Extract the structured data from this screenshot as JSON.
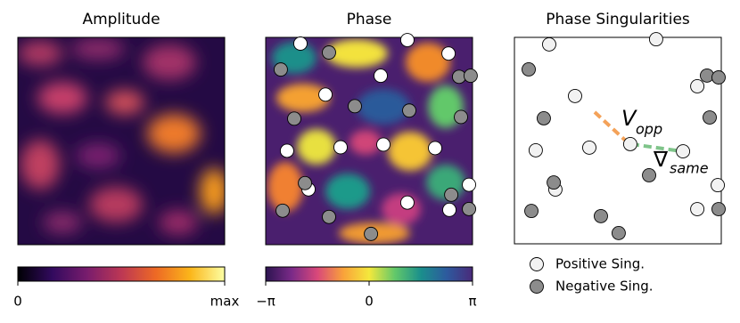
{
  "chart_data": [
    {
      "type": "heatmap",
      "title": "Amplitude",
      "colorbar": {
        "colors": [
          "#000004",
          "#320a5e",
          "#781c6d",
          "#bc3754",
          "#ed6925",
          "#fbb61a",
          "#fcffa4"
        ],
        "xlim": [
          0,
          1
        ],
        "xticks": [
          0,
          {
            "value": 1,
            "label": "max"
          }
        ]
      }
    },
    {
      "type": "heatmap",
      "title": "Phase",
      "colorbar": {
        "colors": [
          "#2c1450",
          "#7a2a88",
          "#d9487a",
          "#f9a23a",
          "#f4e83c",
          "#62c86a",
          "#1a8f8c",
          "#2d5a9e",
          "#4a2a7a"
        ],
        "xlim": [
          -3.14159,
          3.14159
        ],
        "xticks": [
          {
            "value": -3.14159,
            "label": "−π"
          },
          0,
          {
            "value": 3.14159,
            "label": "π"
          }
        ]
      },
      "xlim": [
        0,
        1
      ],
      "ylim": [
        0,
        1
      ],
      "series": [
        {
          "color": "#ffffff",
          "x": [
            0.168,
            0.685,
            0.884,
            0.289,
            0.556,
            0.103,
            0.362,
            0.569,
            0.819,
            0.207,
            0.685,
            0.983,
            0.888
          ],
          "y": [
            0.97,
            0.987,
            0.922,
            0.724,
            0.815,
            0.453,
            0.47,
            0.483,
            0.466,
            0.267,
            0.203,
            0.289,
            0.168
          ]
        },
        {
          "color": "#8c8c8c",
          "x": [
            0.073,
            0.306,
            0.935,
            0.991,
            0.138,
            0.431,
            0.694,
            0.944,
            0.19,
            0.082,
            0.306,
            0.509,
            0.897,
            0.983
          ],
          "y": [
            0.845,
            0.927,
            0.81,
            0.815,
            0.608,
            0.668,
            0.647,
            0.616,
            0.297,
            0.164,
            0.134,
            0.052,
            0.241,
            0.172
          ]
        }
      ]
    },
    {
      "type": "scatter",
      "title": "Phase Singularities",
      "xlim": [
        0,
        1
      ],
      "ylim": [
        0,
        1
      ],
      "legend": "below",
      "series": [
        {
          "name": "Positive Sing.",
          "color": "#f2f2f2",
          "x": [
            0.168,
            0.685,
            0.293,
            0.884,
            0.103,
            0.362,
            0.56,
            0.815,
            0.198,
            0.983,
            0.884
          ],
          "y": [
            0.966,
            0.991,
            0.716,
            0.763,
            0.453,
            0.466,
            0.483,
            0.448,
            0.263,
            0.284,
            0.168
          ]
        },
        {
          "name": "Negative Sing.",
          "color": "#8c8c8c",
          "x": [
            0.069,
            0.931,
            0.987,
            0.142,
            0.944,
            0.651,
            0.19,
            0.082,
            0.418,
            0.504,
            0.987
          ],
          "y": [
            0.845,
            0.815,
            0.806,
            0.608,
            0.612,
            0.332,
            0.297,
            0.159,
            0.134,
            0.052,
            0.168
          ]
        }
      ],
      "annotations": [
        {
          "text": "V",
          "sub": "opp",
          "color": "#f4a259"
        },
        {
          "text": "∇",
          "sub": "same",
          "color": "#7fc48a"
        }
      ]
    }
  ]
}
